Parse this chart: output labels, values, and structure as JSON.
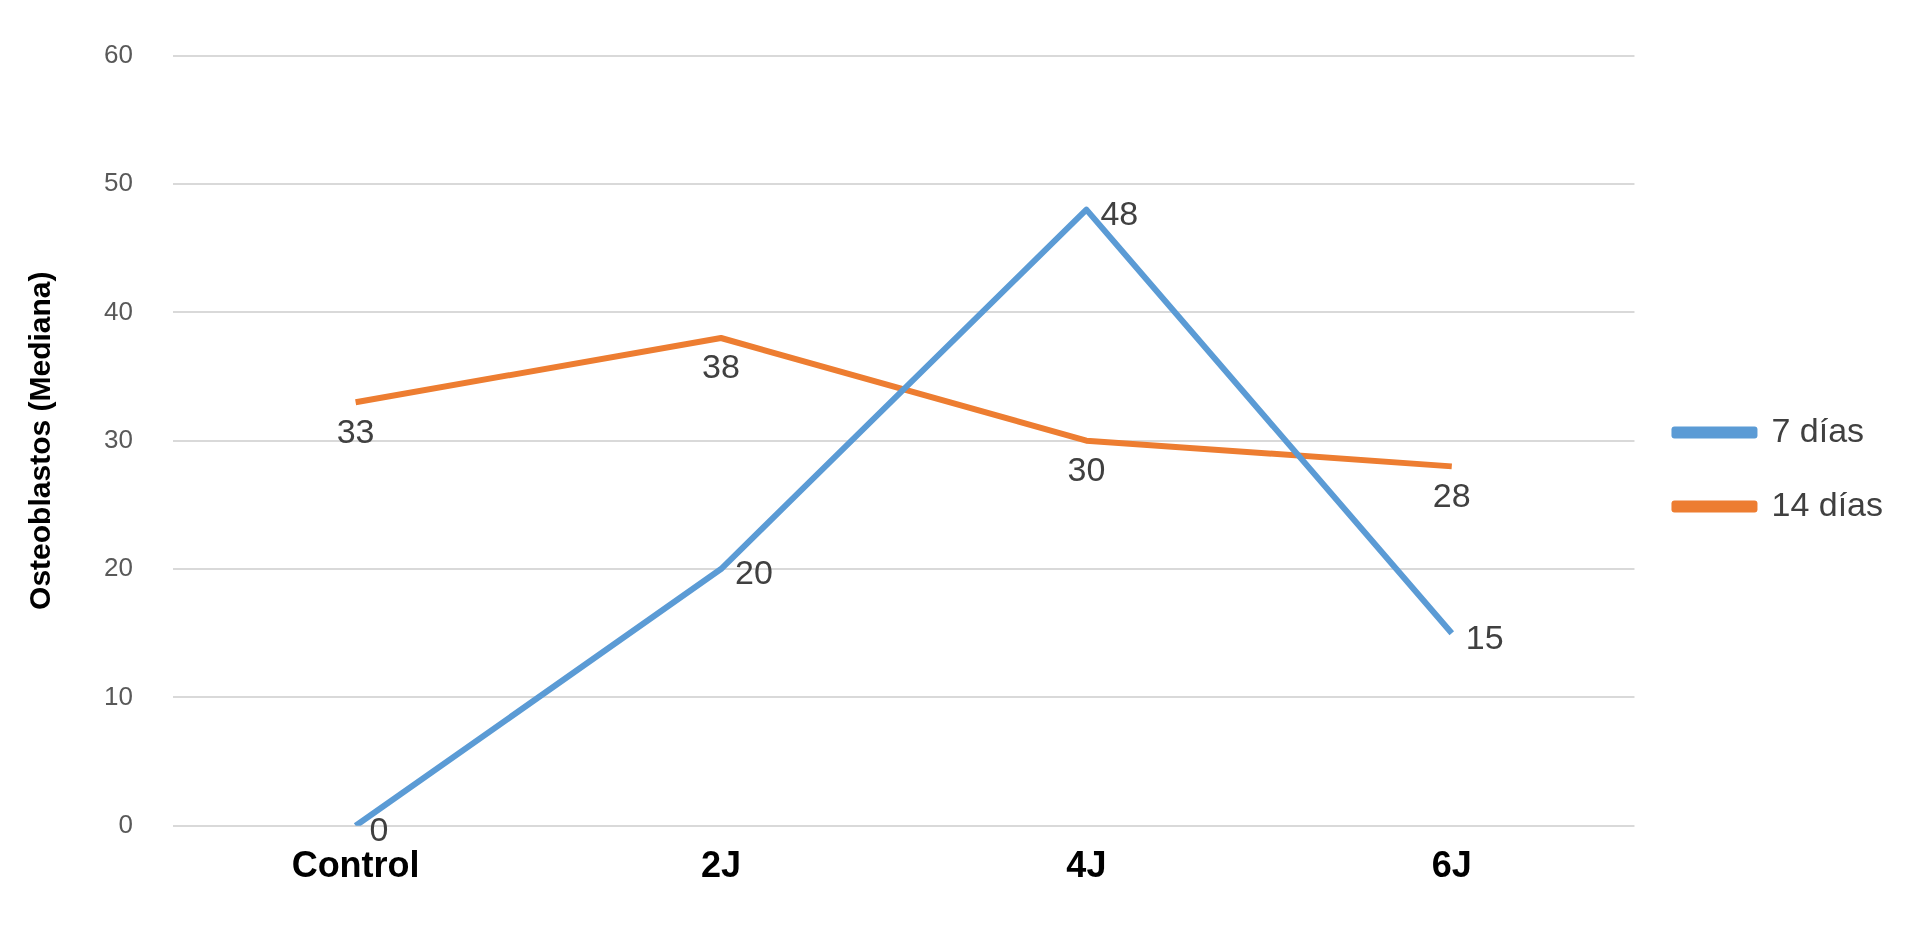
{
  "chart_data": {
    "type": "line",
    "ylabel": "Osteoblastos (Mediana)",
    "categories": [
      "Control",
      "2J",
      "4J",
      "6J"
    ],
    "series": [
      {
        "name": "7 días",
        "color": "#5b9bd5",
        "values": [
          0,
          20,
          48,
          15
        ]
      },
      {
        "name": "14 días",
        "color": "#ed7d31",
        "values": [
          33,
          38,
          30,
          28
        ]
      }
    ],
    "ylim": [
      0,
      60
    ],
    "yticks": [
      0,
      10,
      20,
      30,
      40,
      50,
      60
    ],
    "grid": "y",
    "legend": "right",
    "marker": "none",
    "line_style": "solid",
    "data_labels": true
  }
}
